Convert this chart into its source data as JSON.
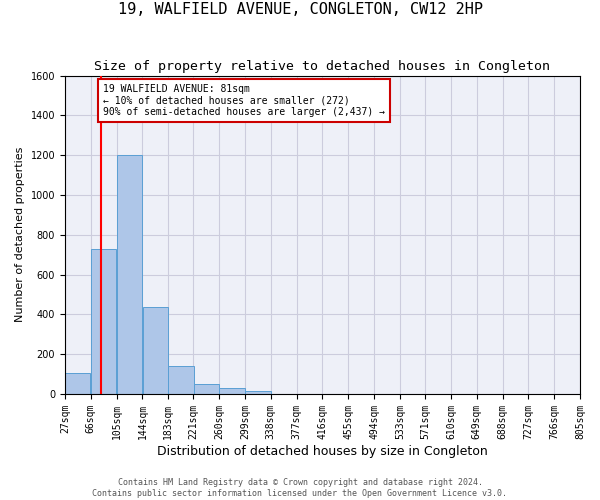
{
  "title": "19, WALFIELD AVENUE, CONGLETON, CW12 2HP",
  "subtitle": "Size of property relative to detached houses in Congleton",
  "xlabel_bottom": "Distribution of detached houses by size in Congleton",
  "ylabel": "Number of detached properties",
  "footer_line1": "Contains HM Land Registry data © Crown copyright and database right 2024.",
  "footer_line2": "Contains public sector information licensed under the Open Government Licence v3.0.",
  "bin_edges": [
    27,
    66,
    105,
    144,
    183,
    221,
    260,
    299,
    338,
    377,
    416,
    455,
    494,
    533,
    571,
    610,
    649,
    688,
    727,
    766,
    805
  ],
  "bar_heights": [
    105,
    730,
    1200,
    435,
    140,
    50,
    30,
    15,
    0,
    0,
    0,
    0,
    0,
    0,
    0,
    0,
    0,
    0,
    0,
    0
  ],
  "bar_color": "#aec6e8",
  "bar_edgecolor": "#5a9fd4",
  "grid_color": "#ccccdd",
  "background_color": "#eef0f8",
  "red_line_x": 81,
  "annotation_text": "19 WALFIELD AVENUE: 81sqm\n← 10% of detached houses are smaller (272)\n90% of semi-detached houses are larger (2,437) →",
  "annotation_box_color": "#ffffff",
  "annotation_border_color": "#cc0000",
  "ylim": [
    0,
    1600
  ],
  "yticks": [
    0,
    200,
    400,
    600,
    800,
    1000,
    1200,
    1400,
    1600
  ],
  "title_fontsize": 11,
  "subtitle_fontsize": 9.5,
  "axis_label_fontsize": 8,
  "tick_fontsize": 7,
  "footer_fontsize": 6,
  "annotation_fontsize": 7
}
